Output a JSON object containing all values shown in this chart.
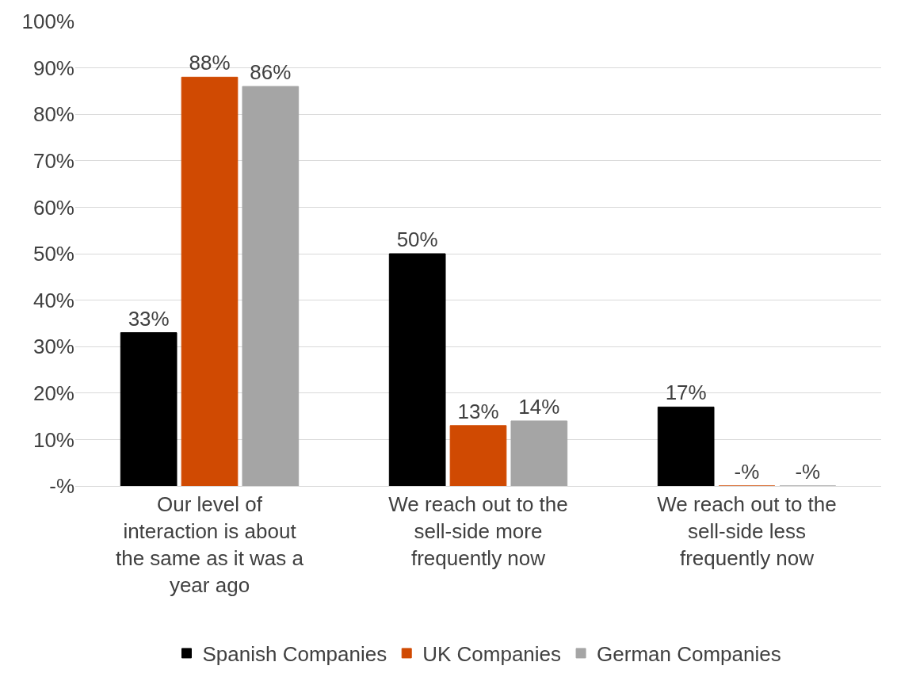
{
  "chart_data": {
    "type": "bar",
    "categories": [
      "Our level of interaction is about the same as it was a year ago",
      "We reach out to the sell-side more frequently now",
      "We reach out to the sell-side less frequently now"
    ],
    "series": [
      {
        "name": "Spanish Companies",
        "color": "#000000",
        "values": [
          33,
          50,
          17
        ],
        "value_labels": [
          "33%",
          "50%",
          "17%"
        ]
      },
      {
        "name": "UK Companies",
        "color": "#d04a02",
        "values": [
          88,
          13,
          0
        ],
        "value_labels": [
          "88%",
          "13%",
          "-%"
        ]
      },
      {
        "name": "German Companies",
        "color": "#a5a5a5",
        "values": [
          86,
          14,
          0
        ],
        "value_labels": [
          "86%",
          "14%",
          "-%"
        ]
      }
    ],
    "ylim": [
      0,
      100
    ],
    "yticks": [
      {
        "value": 0,
        "label": "-%"
      },
      {
        "value": 10,
        "label": "10%"
      },
      {
        "value": 20,
        "label": "20%"
      },
      {
        "value": 30,
        "label": "30%"
      },
      {
        "value": 40,
        "label": "40%"
      },
      {
        "value": 50,
        "label": "50%"
      },
      {
        "value": 60,
        "label": "60%"
      },
      {
        "value": 70,
        "label": "70%"
      },
      {
        "value": 80,
        "label": "80%"
      },
      {
        "value": 90,
        "label": "90%"
      },
      {
        "value": 100,
        "label": "100%"
      }
    ],
    "grid": "y",
    "legend": "bottom"
  }
}
